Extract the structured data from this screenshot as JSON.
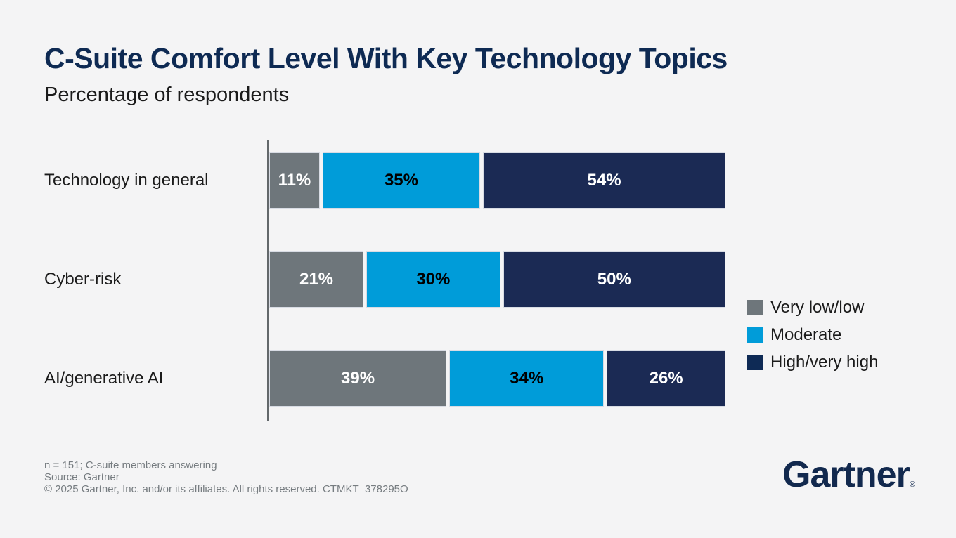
{
  "page": {
    "background": "#F4F4F5"
  },
  "header": {
    "title": "C-Suite Comfort Level With Key Technology Topics",
    "subtitle": "Percentage of respondents"
  },
  "chart_data": {
    "type": "bar",
    "orientation": "horizontal",
    "stacked": true,
    "title": "C-Suite Comfort Level With Key Technology Topics",
    "subtitle": "Percentage of respondents",
    "unit": "%",
    "grid": false,
    "legend_position": "right",
    "categories": [
      "Technology in general",
      "Cyber-risk",
      "AI/generative AI"
    ],
    "series": [
      {
        "name": "Very low/low",
        "color": "#6E767B",
        "label_color": "#FFFFFF",
        "values": [
          11,
          21,
          39
        ]
      },
      {
        "name": "Moderate",
        "color": "#009CD9",
        "label_color": "#000000",
        "values": [
          35,
          30,
          34
        ]
      },
      {
        "name": "High/very high",
        "color": "#1B2A54",
        "label_color": "#FFFFFF",
        "values": [
          54,
          50,
          26
        ]
      }
    ]
  },
  "legend": {
    "items": [
      {
        "label": "Very low/low",
        "color": "#6E767B"
      },
      {
        "label": "Moderate",
        "color": "#009CD9"
      },
      {
        "label": "High/very high",
        "color": "#0E2A55"
      }
    ]
  },
  "footer": {
    "lines": [
      "n = 151; C-suite members answering",
      "Source: Gartner",
      "© 2025 Gartner, Inc. and/or its affiliates. All rights reserved. CTMKT_378295O"
    ]
  },
  "logo": {
    "text": "Gartner",
    "registered": "®"
  }
}
